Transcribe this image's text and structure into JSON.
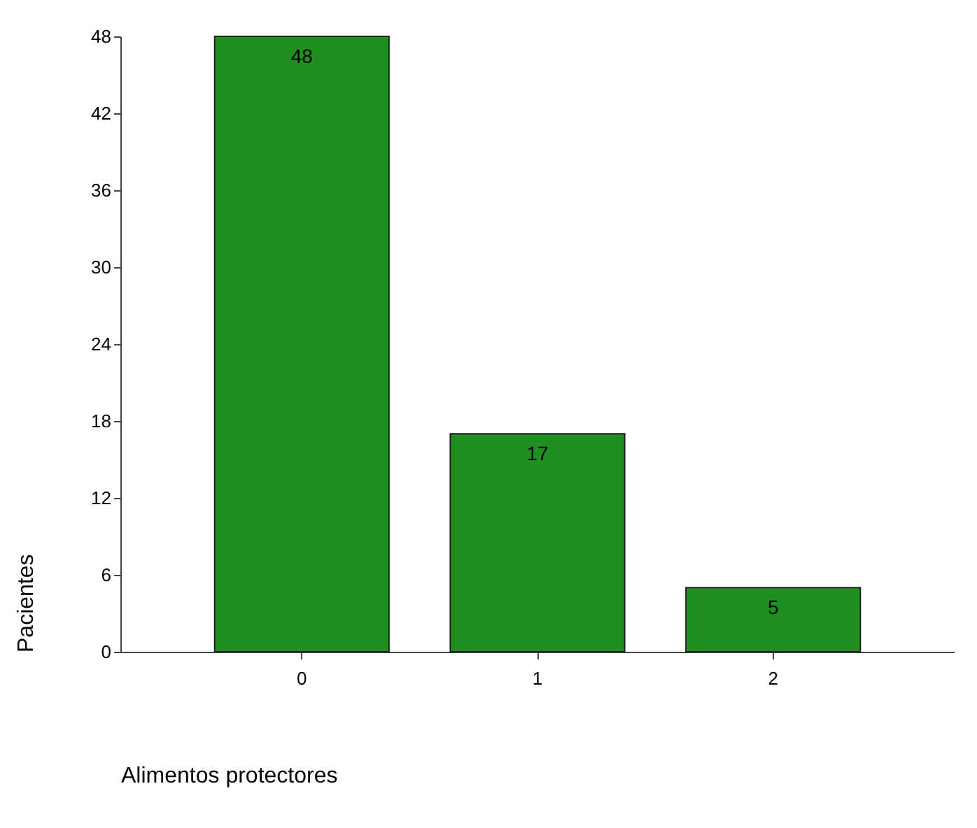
{
  "chart_data": {
    "type": "bar",
    "xlabel": "Alimentos protectores",
    "ylabel": "Pacientes",
    "categories": [
      "0",
      "1",
      "2"
    ],
    "values": [
      48,
      17,
      5
    ],
    "color": "#1f8f1f",
    "ylim": [
      0,
      48
    ],
    "yticks": [
      0,
      6,
      12,
      18,
      24,
      30,
      36,
      42,
      48
    ],
    "grid": false,
    "data_labels": true
  }
}
